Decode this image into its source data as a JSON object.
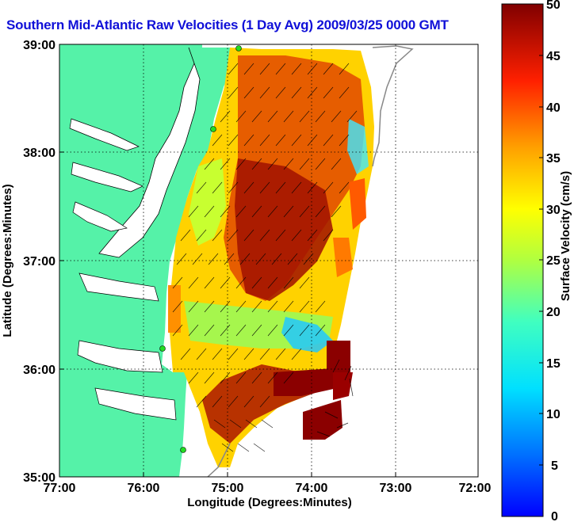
{
  "title": "Southern Mid-Atlantic Raw Velocities (1 Day Avg) 2009/03/25 0000 GMT",
  "map": {
    "xlabel": "Longitude (Degrees:Minutes)",
    "ylabel": "Latitude (Degrees:Minutes)",
    "x_ticks": [
      "77:00",
      "76:00",
      "75:00",
      "74:00",
      "73:00",
      "72:00"
    ],
    "y_ticks": [
      "39:00",
      "38:00",
      "37:00",
      "36:00",
      "35:00"
    ],
    "grid": true,
    "land_color": "#55f2a8",
    "coastline_color": "#000000",
    "station_color": "#22dd22"
  },
  "colorbar": {
    "label": "Surface Velocity (cm/s)",
    "ticks": [
      "50",
      "45",
      "40",
      "35",
      "30",
      "25",
      "20",
      "15",
      "10",
      "5",
      "0"
    ],
    "range": [
      0,
      50
    ],
    "colormap": "jet"
  }
}
